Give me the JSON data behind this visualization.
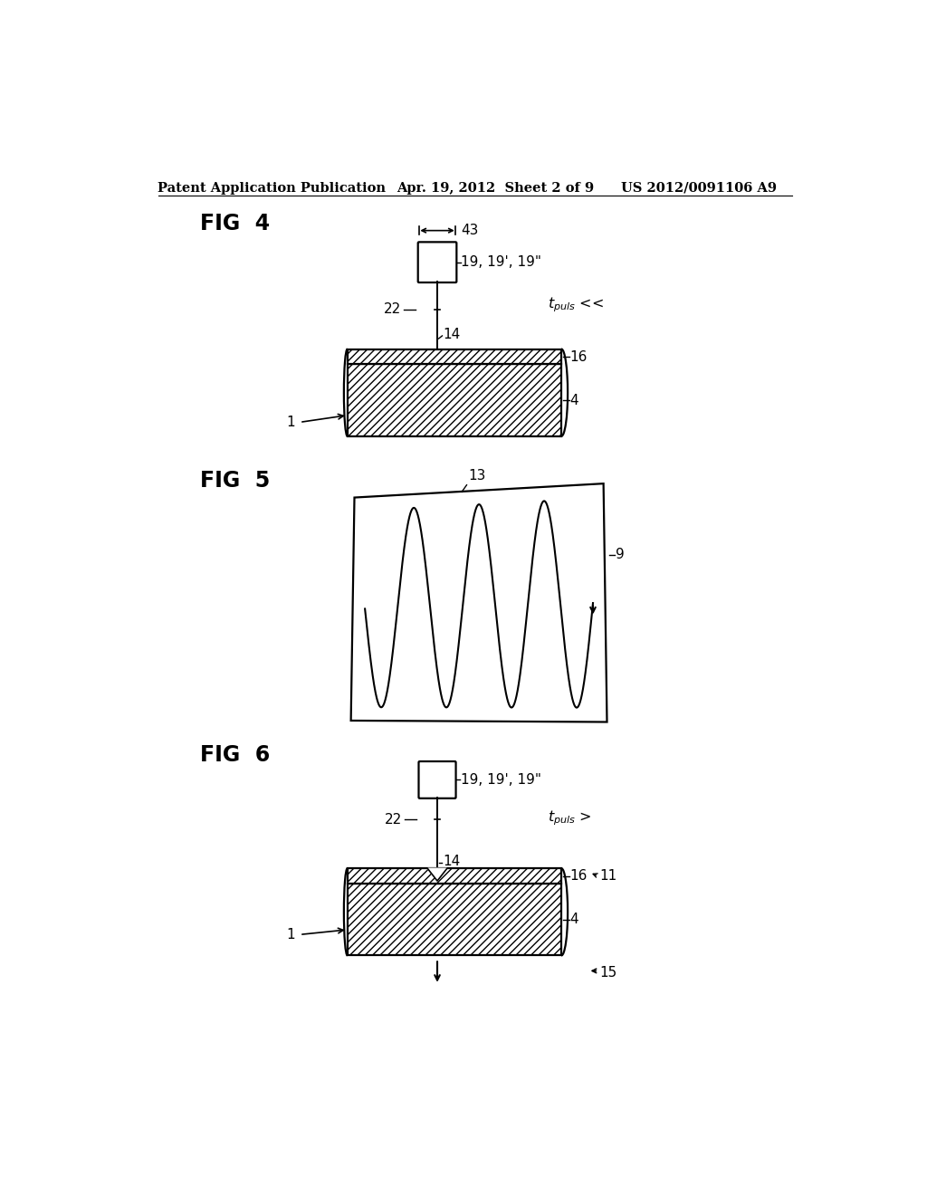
{
  "bg_color": "#ffffff",
  "header_left": "Patent Application Publication",
  "header_center": "Apr. 19, 2012  Sheet 2 of 9",
  "header_right": "US 2012/0091106 A9",
  "fig4_label": "FIG  4",
  "fig5_label": "FIG  5",
  "fig6_label": "FIG  6",
  "black": "#000000"
}
